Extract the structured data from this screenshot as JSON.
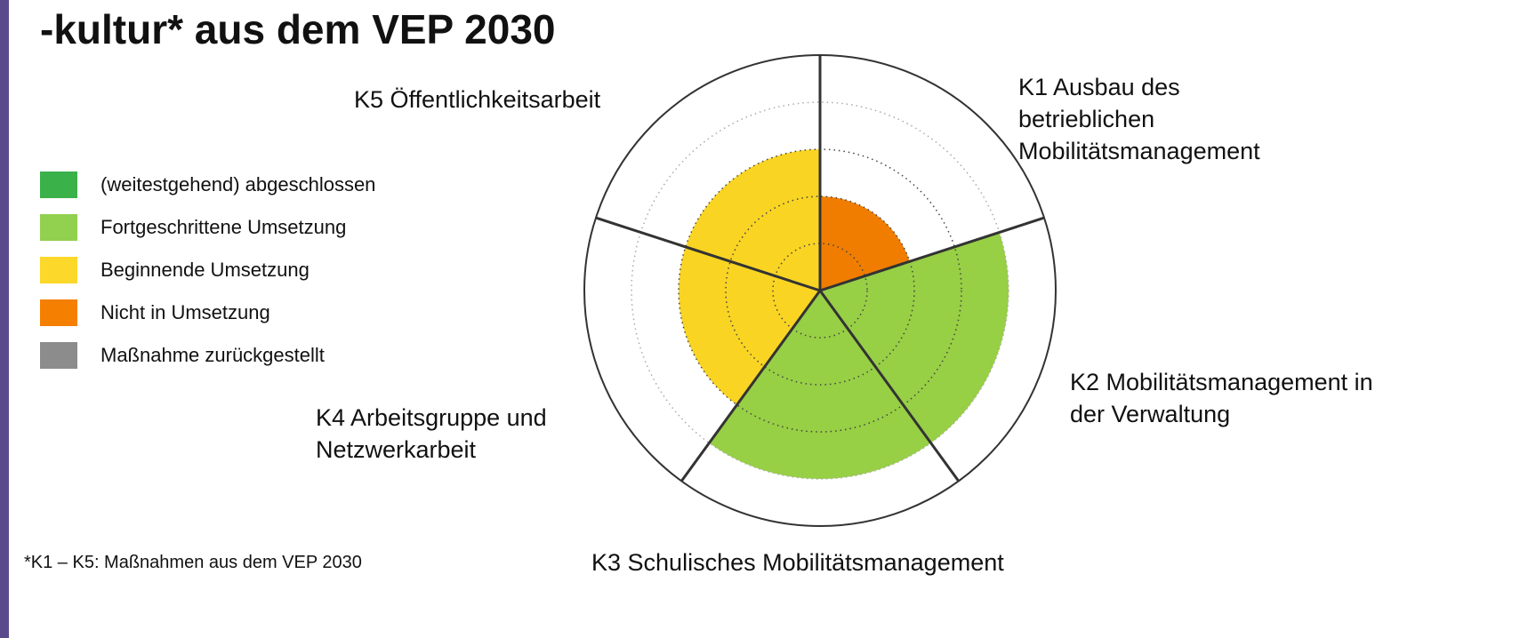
{
  "chart_data": {
    "type": "polar_area",
    "title": "-kultur* aus dem VEP 2030",
    "categories": [
      "K1 Ausbau des betrieblichen Mobilitätsmanagement",
      "K2 Mobilitätsmanagement in der Verwaltung",
      "K3 Schulisches Mobilitätsmanagement",
      "K4 Arbeitsgruppe und Netzwerkarbeit",
      "K5 Öffentlichkeitsarbeit"
    ],
    "values": [
      2,
      4,
      4,
      3,
      3
    ],
    "colors": [
      "#f07d00",
      "#97cf45",
      "#97cf45",
      "#f9d423",
      "#f9d423"
    ],
    "rlim": [
      0,
      5
    ],
    "rticks": [
      1,
      2,
      3,
      4
    ],
    "legend": [
      {
        "label": "(weitestgehend) abgeschlossen",
        "color": "#3bb14a"
      },
      {
        "label": "Fortgeschrittene Umsetzung",
        "color": "#92d050"
      },
      {
        "label": "Beginnende Umsetzung",
        "color": "#fcd82a"
      },
      {
        "label": "Nicht in Umsetzung",
        "color": "#f57f00"
      },
      {
        "label": "Maßnahme zurückgestellt",
        "color": "#8c8c8c"
      }
    ],
    "footnote": "*K1 – K5: Maßnahmen aus dem VEP 2030"
  }
}
